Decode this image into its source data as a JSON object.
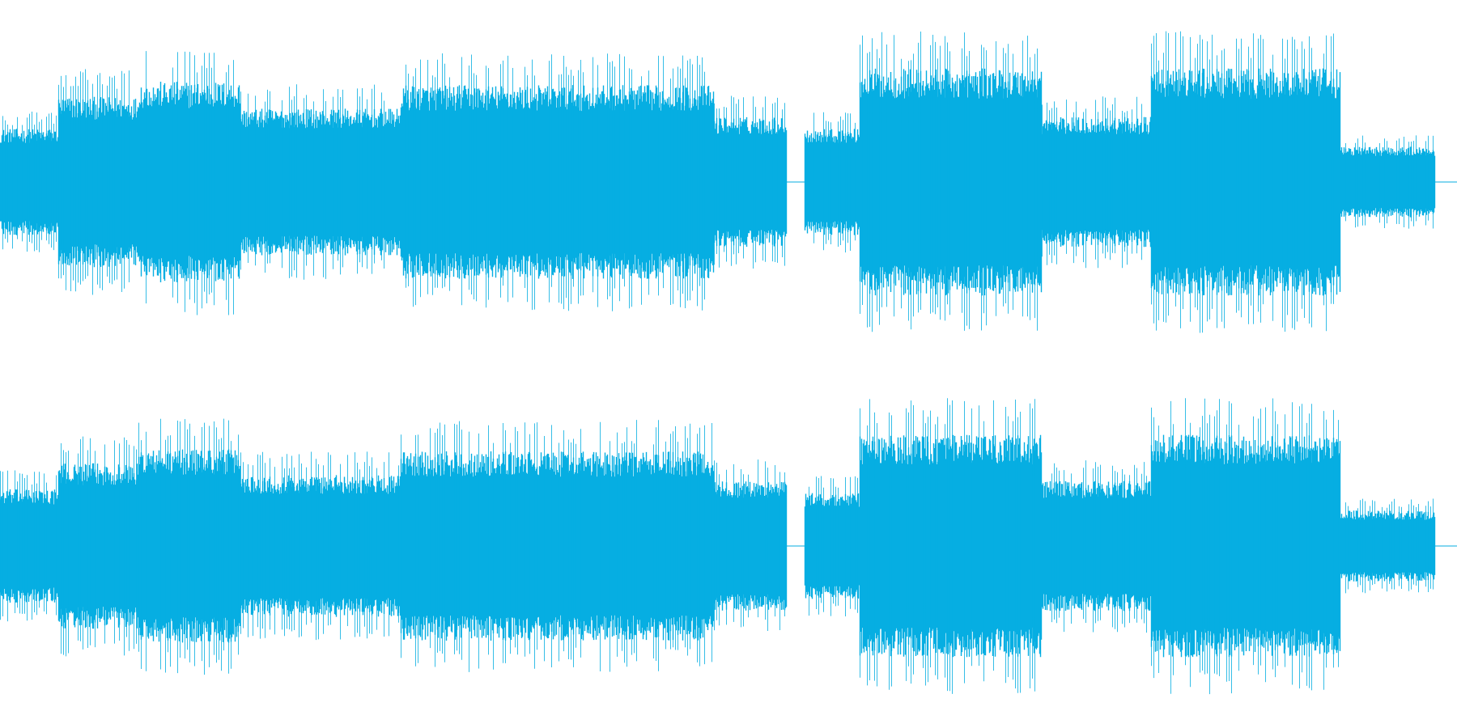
{
  "waveform": {
    "color": "#06aee2",
    "channels": [
      {
        "channel": "left",
        "segments": [
          {
            "from": 0.0,
            "to": 0.04,
            "amp": 0.45
          },
          {
            "from": 0.04,
            "to": 0.095,
            "amp": 0.72
          },
          {
            "from": 0.095,
            "to": 0.165,
            "amp": 0.85
          },
          {
            "from": 0.165,
            "to": 0.275,
            "amp": 0.62
          },
          {
            "from": 0.275,
            "to": 0.49,
            "amp": 0.82
          },
          {
            "from": 0.49,
            "to": 0.54,
            "amp": 0.55
          },
          {
            "from": 0.54,
            "to": 0.552,
            "amp": 0.0
          },
          {
            "from": 0.552,
            "to": 0.59,
            "amp": 0.45
          },
          {
            "from": 0.59,
            "to": 0.715,
            "amp": 0.96
          },
          {
            "from": 0.715,
            "to": 0.79,
            "amp": 0.55
          },
          {
            "from": 0.79,
            "to": 0.92,
            "amp": 0.96
          },
          {
            "from": 0.92,
            "to": 0.985,
            "amp": 0.3
          },
          {
            "from": 0.985,
            "to": 1.0,
            "amp": 0.0
          }
        ]
      },
      {
        "channel": "right",
        "segments": [
          {
            "from": 0.0,
            "to": 0.04,
            "amp": 0.48
          },
          {
            "from": 0.04,
            "to": 0.095,
            "amp": 0.7
          },
          {
            "from": 0.095,
            "to": 0.165,
            "amp": 0.82
          },
          {
            "from": 0.165,
            "to": 0.275,
            "amp": 0.6
          },
          {
            "from": 0.275,
            "to": 0.49,
            "amp": 0.8
          },
          {
            "from": 0.49,
            "to": 0.54,
            "amp": 0.55
          },
          {
            "from": 0.54,
            "to": 0.552,
            "amp": 0.0
          },
          {
            "from": 0.552,
            "to": 0.59,
            "amp": 0.45
          },
          {
            "from": 0.59,
            "to": 0.715,
            "amp": 0.94
          },
          {
            "from": 0.715,
            "to": 0.79,
            "amp": 0.55
          },
          {
            "from": 0.79,
            "to": 0.92,
            "amp": 0.94
          },
          {
            "from": 0.92,
            "to": 0.985,
            "amp": 0.3
          },
          {
            "from": 0.985,
            "to": 1.0,
            "amp": 0.0
          }
        ]
      }
    ]
  }
}
